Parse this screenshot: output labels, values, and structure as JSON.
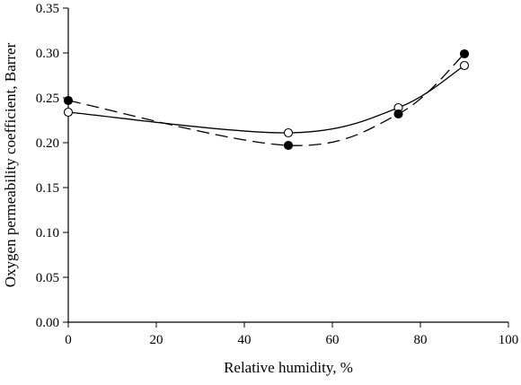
{
  "chart_data": {
    "type": "scatter",
    "title": "",
    "xlabel": "Relative humidity, %",
    "ylabel": "Oxygen permeability coefficient, Barrer",
    "xlim": [
      0,
      100
    ],
    "ylim": [
      0.0,
      0.35
    ],
    "x_ticks": [
      "0",
      "20",
      "40",
      "60",
      "80",
      "100"
    ],
    "y_ticks": [
      "0.00",
      "0.05",
      "0.10",
      "0.15",
      "0.20",
      "0.25",
      "0.30",
      "0.35"
    ],
    "grid": false,
    "legend": "none",
    "series": [
      {
        "marker": "open-circle",
        "line": "solid",
        "x": [
          0,
          50,
          75,
          90
        ],
        "y": [
          0.234,
          0.211,
          0.239,
          0.286
        ]
      },
      {
        "marker": "filled-circle",
        "line": "dashed",
        "x": [
          0,
          50,
          75,
          90
        ],
        "y": [
          0.247,
          0.197,
          0.232,
          0.299
        ]
      }
    ]
  }
}
